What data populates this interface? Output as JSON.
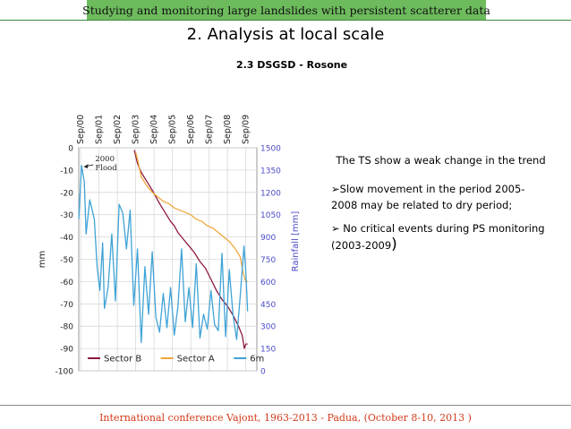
{
  "header": {
    "text": "Studying and monitoring large landslides with persistent scatterer data"
  },
  "title": "2. Analysis at local scale",
  "subtitle": "2.3 DSGSD - Rosone",
  "text_block": {
    "center_text": "The TS show a weak change in the trend",
    "bullets": [
      {
        "mark": "➢",
        "text": "Slow movement in the period 2005-2008 may be related to dry period;",
        "tail": ""
      },
      {
        "mark": "➢",
        "text": " No critical events during PS monitoring (2003-2009",
        "tail": ")"
      }
    ]
  },
  "footer": {
    "text": "International conference Vajont, 1963-2013 - Padua, (October 8-10, 2013 )"
  },
  "chart_data": {
    "type": "line",
    "x_tick_labels": [
      "Sep/00",
      "Sep/01",
      "Sep/02",
      "Sep/03",
      "Sep/04",
      "Sep/05",
      "Sep/06",
      "Sep/07",
      "Sep/08",
      "Sep/09"
    ],
    "x_range": [
      2000.6,
      2010.3
    ],
    "ylabel": "mm",
    "ylim": [
      -100,
      0
    ],
    "y_ticks": [
      0,
      -10,
      -20,
      -30,
      -40,
      -50,
      -60,
      -70,
      -80,
      -90,
      -100
    ],
    "y2label": "Rainfall [mm]",
    "y2lim": [
      0,
      1500
    ],
    "y2_ticks": [
      1500,
      1350,
      1200,
      1050,
      900,
      750,
      600,
      450,
      300,
      150,
      0
    ],
    "grid": true,
    "legend_position": "bottom",
    "annotation": {
      "lines": [
        "2000",
        "Flood"
      ],
      "x": 2001.3,
      "y": -6
    },
    "series": [
      {
        "name": "Sector B",
        "axis": "left",
        "color": "#8b1a3e",
        "x": [
          2003.62,
          2003.8,
          2004.0,
          2004.3,
          2004.6,
          2004.8,
          2005.0,
          2005.3,
          2005.6,
          2005.8,
          2006.0,
          2006.3,
          2006.6,
          2006.9,
          2007.2,
          2007.5,
          2007.8,
          2008.1,
          2008.4,
          2008.7,
          2009.0,
          2009.3,
          2009.5,
          2009.62,
          2009.7,
          2009.8
        ],
        "y": [
          -1,
          -7,
          -11,
          -15,
          -19,
          -22,
          -25,
          -29,
          -33,
          -35,
          -38,
          -41,
          -44,
          -47,
          -51,
          -54,
          -59,
          -64,
          -68,
          -71,
          -75,
          -80,
          -84,
          -90,
          -88,
          -88
        ]
      },
      {
        "name": "Sector A",
        "axis": "left",
        "color": "#f0a83c",
        "x": [
          2003.7,
          2003.85,
          2004.0,
          2004.3,
          2004.6,
          2004.9,
          2005.2,
          2005.5,
          2005.8,
          2006.1,
          2006.4,
          2006.7,
          2007.0,
          2007.3,
          2007.6,
          2007.9,
          2008.2,
          2008.5,
          2008.8,
          2009.1,
          2009.4,
          2009.55,
          2009.7,
          2009.8
        ],
        "y": [
          -2,
          -7,
          -13,
          -17,
          -20,
          -22,
          -24,
          -25,
          -27,
          -28,
          -29,
          -30,
          -32,
          -33,
          -35,
          -36,
          -38,
          -40,
          -42,
          -45,
          -49,
          -56,
          -60,
          -60
        ]
      },
      {
        "name": "6m",
        "axis": "right",
        "color": "#3fa3d6",
        "x": [
          2000.6,
          2000.75,
          2000.9,
          2001.0,
          2001.2,
          2001.45,
          2001.6,
          2001.75,
          2001.9,
          2002.0,
          2002.2,
          2002.4,
          2002.6,
          2002.8,
          2003.0,
          2003.2,
          2003.4,
          2003.6,
          2003.8,
          2004.0,
          2004.2,
          2004.4,
          2004.6,
          2004.8,
          2005.0,
          2005.2,
          2005.4,
          2005.6,
          2005.8,
          2006.0,
          2006.2,
          2006.4,
          2006.6,
          2006.8,
          2007.0,
          2007.2,
          2007.4,
          2007.6,
          2007.8,
          2008.0,
          2008.2,
          2008.4,
          2008.6,
          2008.8,
          2009.0,
          2009.2,
          2009.4,
          2009.6,
          2009.7,
          2009.8
        ],
        "y": [
          1020,
          1380,
          1270,
          920,
          1150,
          1020,
          700,
          540,
          860,
          420,
          560,
          920,
          470,
          1120,
          1060,
          820,
          1080,
          440,
          820,
          190,
          700,
          380,
          800,
          360,
          260,
          520,
          290,
          560,
          240,
          430,
          820,
          330,
          560,
          290,
          720,
          220,
          380,
          280,
          540,
          310,
          270,
          790,
          230,
          680,
          380,
          210,
          510,
          840,
          660,
          400
        ]
      }
    ]
  }
}
